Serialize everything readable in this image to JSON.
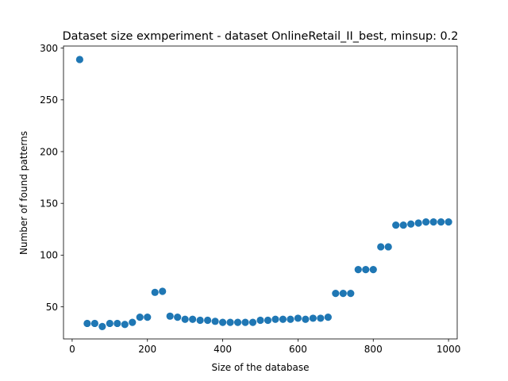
{
  "chart_data": {
    "type": "scatter",
    "title": "Dataset size exmperiment - dataset OnlineRetail_II_best, minsup: 0.2",
    "xlabel": "Size of the database",
    "ylabel": "Number of found patterns",
    "xlim": [
      -23,
      1023
    ],
    "ylim": [
      19,
      302
    ],
    "xticks": [
      0,
      200,
      400,
      600,
      800,
      1000
    ],
    "yticks": [
      50,
      100,
      150,
      200,
      250,
      300
    ],
    "grid": false,
    "marker_color": "#1f77b4",
    "series": [
      {
        "x": [
          20,
          40,
          60,
          80,
          100,
          120,
          140,
          160,
          180,
          200,
          220,
          240,
          260,
          280,
          300,
          320,
          340,
          360,
          380,
          400,
          420,
          440,
          460,
          480,
          500,
          520,
          540,
          560,
          580,
          600,
          620,
          640,
          660,
          680,
          700,
          720,
          740,
          760,
          780,
          800,
          820,
          840,
          860,
          880,
          900,
          920,
          940,
          960,
          980,
          1000
        ],
        "y": [
          289,
          34,
          34,
          31,
          34,
          34,
          33,
          35,
          40,
          40,
          64,
          65,
          41,
          40,
          38,
          38,
          37,
          37,
          36,
          35,
          35,
          35,
          35,
          35,
          37,
          37,
          38,
          38,
          38,
          39,
          38,
          39,
          39,
          40,
          63,
          63,
          63,
          86,
          86,
          86,
          108,
          108,
          129,
          129,
          130,
          131,
          132,
          132,
          132,
          132
        ]
      }
    ]
  }
}
